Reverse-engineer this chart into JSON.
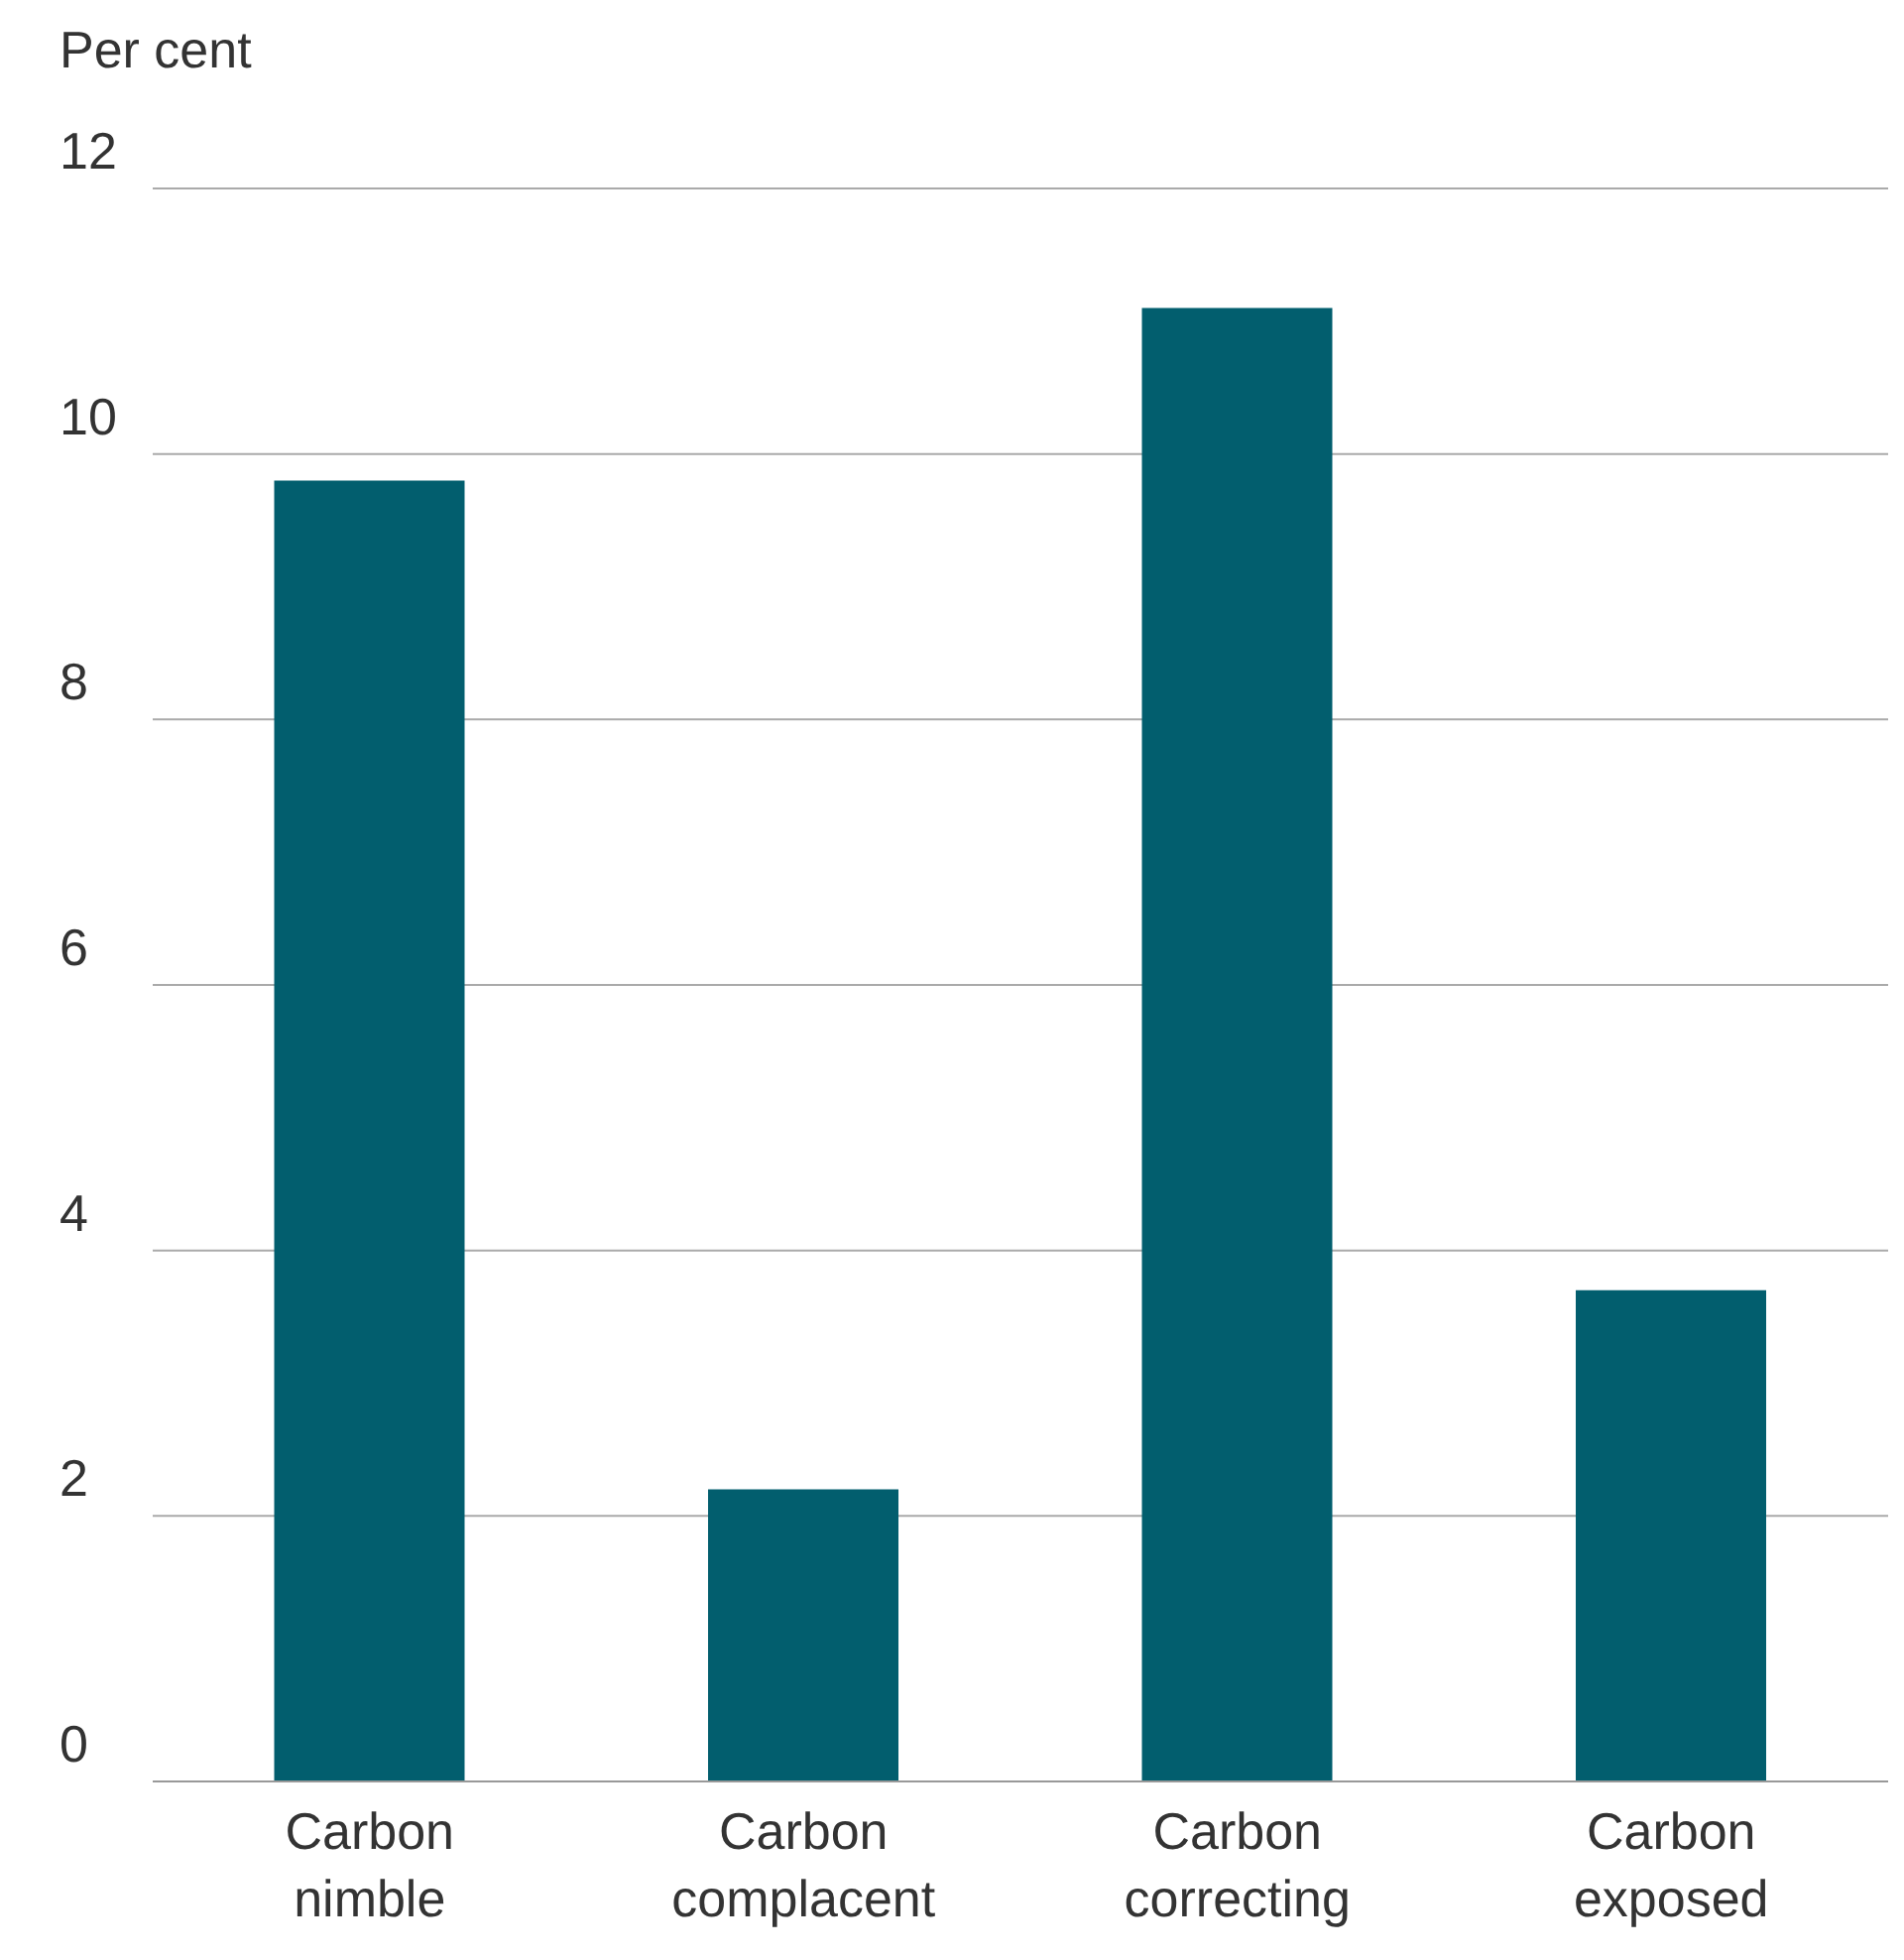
{
  "chart_data": {
    "type": "bar",
    "ylabel": "Per cent",
    "categories": [
      "Carbon nimble",
      "Carbon complacent",
      "Carbon correcting",
      "Carbon exposed"
    ],
    "values": [
      9.8,
      2.2,
      11.1,
      3.7
    ],
    "color": "#025e6e",
    "ylim": [
      0,
      12
    ],
    "yticks": [
      0,
      2,
      4,
      6,
      8,
      10,
      12
    ],
    "grid": "y"
  }
}
